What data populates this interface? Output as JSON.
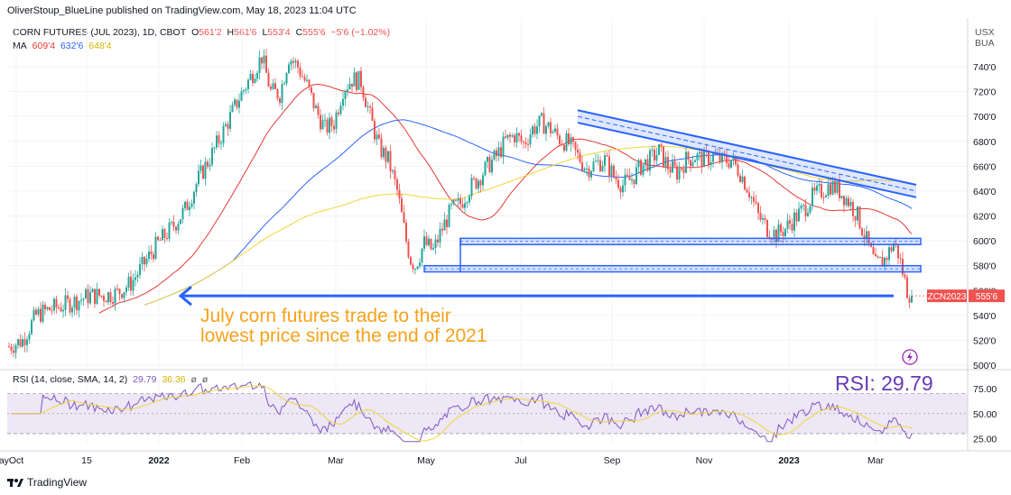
{
  "header": {
    "published": "OliverStoup_BlueLine published on TradingView.com, May 18, 2023 11:04 UTC"
  },
  "legend": {
    "symbol": "CORN FUTURES (JUL 2023), 1D, CBOT",
    "o_label": "O",
    "o_value": "561'2",
    "h_label": "H",
    "h_value": "561'6",
    "l_label": "L",
    "l_value": "553'4",
    "c_label": "C",
    "c_value": "555'6",
    "change": "−5'6 (−1.02%)",
    "ma_label": "MA",
    "ma1": "609'4",
    "ma2": "632'6",
    "ma3": "648'4",
    "rsi_label": "RSI (14, close, SMA, 14, 2)",
    "rsi_value": "29.79",
    "rsi_sma_value": "36.36",
    "rsi_extra1": "ø",
    "rsi_extra2": "ø"
  },
  "currency": {
    "line1": "USX",
    "line2": "BUA"
  },
  "price_label": {
    "ticker": "ZCN2023",
    "value": "555'6"
  },
  "annotation": {
    "line1": "July corn futures trade to their",
    "line2": "lowest price since the end of 2021"
  },
  "rsi_callout": "RSI: 29.79",
  "footer": {
    "brand": "TradingView"
  },
  "colors": {
    "up": "#26a69a",
    "down": "#ef5350",
    "ma_red": "#e53935",
    "ma_blue": "#2962ff",
    "ma_yellow": "#f2d53b",
    "rsi_line": "#7e57c2",
    "rsi_sma": "#f2d53b",
    "trend": "#2962ff",
    "annotation": "#f7a21b",
    "rsi_fill": "#ede7f6"
  },
  "chart_data": [
    {
      "type": "candlestick",
      "title": "CORN FUTURES (JUL 2023), 1D, CBOT",
      "x_tick_labels": [
        "Oct",
        "15",
        "2022",
        "Feb",
        "Mar",
        "May",
        "Jul",
        "Sep",
        "Nov",
        "2023",
        "Mar",
        "May"
      ],
      "y_tick_labels": [
        "740'0",
        "720'0",
        "700'0",
        "680'0",
        "660'0",
        "640'0",
        "620'0",
        "600'0",
        "580'0",
        "560'0",
        "540'0",
        "520'0",
        "500'0"
      ],
      "ylim": [
        500,
        760
      ],
      "series_description": "daily price path (cents/bushel) sampled along x from Oct 2021 to May 18 2023",
      "price_path": [
        [
          0,
          515
        ],
        [
          3,
          520
        ],
        [
          6,
          540
        ],
        [
          9,
          545
        ],
        [
          12,
          548
        ],
        [
          15,
          552
        ],
        [
          18,
          556
        ],
        [
          21,
          556
        ],
        [
          24,
          558
        ],
        [
          27,
          566
        ],
        [
          30,
          582
        ],
        [
          33,
          598
        ],
        [
          36,
          610
        ],
        [
          39,
          625
        ],
        [
          42,
          650
        ],
        [
          45,
          670
        ],
        [
          48,
          692
        ],
        [
          51,
          715
        ],
        [
          54,
          735
        ],
        [
          56,
          748
        ],
        [
          58,
          720
        ],
        [
          60,
          718
        ],
        [
          62,
          748
        ],
        [
          64,
          740
        ],
        [
          66,
          725
        ],
        [
          68,
          705
        ],
        [
          70,
          690
        ],
        [
          72,
          695
        ],
        [
          74,
          722
        ],
        [
          76,
          730
        ],
        [
          78,
          728
        ],
        [
          80,
          700
        ],
        [
          82,
          675
        ],
        [
          84,
          665
        ],
        [
          86,
          640
        ],
        [
          88,
          600
        ],
        [
          89,
          585
        ],
        [
          90,
          580
        ],
        [
          92,
          598
        ],
        [
          93,
          595
        ],
        [
          94,
          592
        ],
        [
          96,
          610
        ],
        [
          98,
          625
        ],
        [
          100,
          630
        ],
        [
          102,
          642
        ],
        [
          104,
          650
        ],
        [
          106,
          660
        ],
        [
          108,
          668
        ],
        [
          110,
          680
        ],
        [
          112,
          685
        ],
        [
          114,
          678
        ],
        [
          116,
          690
        ],
        [
          118,
          695
        ],
        [
          120,
          690
        ],
        [
          122,
          682
        ],
        [
          124,
          678
        ],
        [
          126,
          668
        ],
        [
          128,
          658
        ],
        [
          130,
          662
        ],
        [
          132,
          665
        ],
        [
          134,
          652
        ],
        [
          136,
          645
        ],
        [
          138,
          650
        ],
        [
          140,
          660
        ],
        [
          142,
          665
        ],
        [
          144,
          672
        ],
        [
          146,
          660
        ],
        [
          148,
          655
        ],
        [
          150,
          665
        ],
        [
          152,
          668
        ],
        [
          154,
          665
        ],
        [
          156,
          668
        ],
        [
          158,
          664
        ],
        [
          160,
          665
        ],
        [
          162,
          655
        ],
        [
          164,
          640
        ],
        [
          166,
          620
        ],
        [
          168,
          610
        ],
        [
          170,
          605
        ],
        [
          172,
          610
        ],
        [
          174,
          618
        ],
        [
          176,
          625
        ],
        [
          178,
          635
        ],
        [
          180,
          640
        ],
        [
          182,
          645
        ],
        [
          184,
          640
        ],
        [
          186,
          632
        ],
        [
          188,
          620
        ],
        [
          190,
          600
        ],
        [
          192,
          580
        ],
        [
          194,
          585
        ],
        [
          196,
          598
        ],
        [
          197,
          590
        ],
        [
          198,
          575
        ],
        [
          199,
          560
        ],
        [
          200,
          555.75
        ]
      ],
      "ma_series": [
        {
          "name": "MA 609'4",
          "color": "#e53935",
          "last": 609.5
        },
        {
          "name": "MA 632'6",
          "color": "#2962ff",
          "last": 632.75
        },
        {
          "name": "MA 648'4",
          "color": "#f2d53b",
          "last": 648.5
        }
      ],
      "annotations": [
        {
          "type": "descending channel",
          "from": "Sep 2022 (700)",
          "to": "May 2023 (645)"
        },
        {
          "type": "support zone",
          "low": 597,
          "high": 602
        },
        {
          "type": "support zone",
          "low": 575,
          "high": 580
        },
        {
          "type": "horizontal line",
          "value": 555.75,
          "label": "late 2021 level"
        }
      ]
    },
    {
      "type": "line",
      "title": "RSI (14, close, SMA, 14, 2)",
      "y_tick_labels": [
        "75.00",
        "50.00",
        "25.00"
      ],
      "ylim": [
        20,
        85
      ],
      "bands": [
        30,
        70
      ],
      "last_rsi": 29.79,
      "last_rsi_sma": 36.36
    }
  ]
}
